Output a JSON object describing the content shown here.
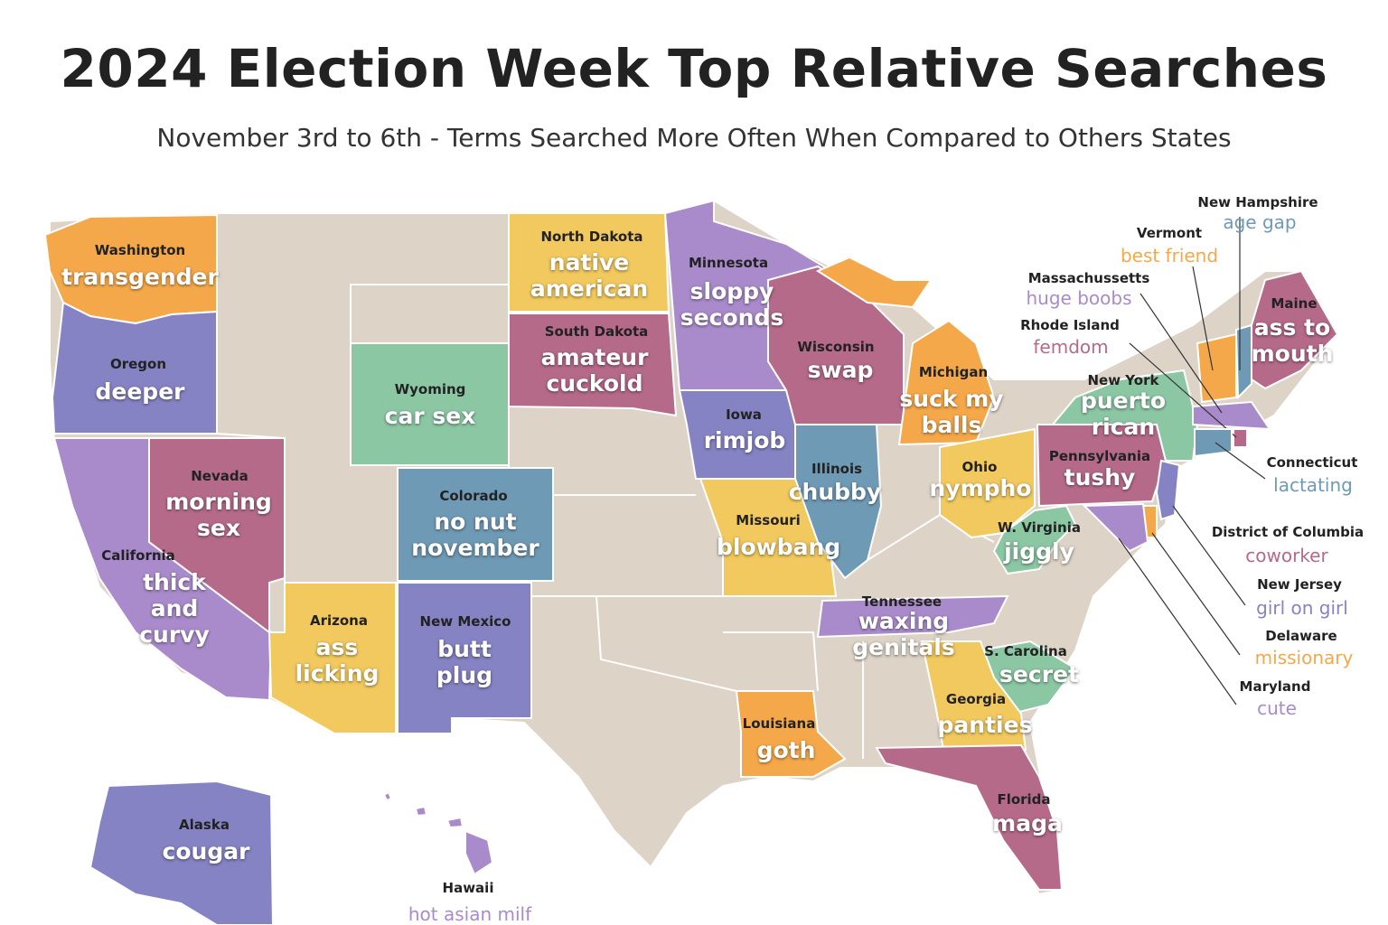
{
  "header": {
    "title": "2024 Election Week Top Relative Searches",
    "subtitle": "November 3rd to 6th - Terms Searched More Often When Compared to Others States"
  },
  "states": [
    {
      "name": "Washington",
      "term": "transgender",
      "color": "#f5a84a"
    },
    {
      "name": "Oregon",
      "term": "deeper",
      "color": "#8683c4"
    },
    {
      "name": "California",
      "term": "thick and curvy",
      "color": "#a98bcb"
    },
    {
      "name": "Nevada",
      "term": "morning sex",
      "color": "#b56a8a"
    },
    {
      "name": "Wyoming",
      "term": "car sex",
      "color": "#8cc7a4"
    },
    {
      "name": "Colorado",
      "term": "no nut november",
      "color": "#6f9ab5"
    },
    {
      "name": "Arizona",
      "term": "ass licking",
      "color": "#f2c95e"
    },
    {
      "name": "New Mexico",
      "term": "butt plug",
      "color": "#8683c4"
    },
    {
      "name": "North Dakota",
      "term": "native american",
      "color": "#f2c95e"
    },
    {
      "name": "South Dakota",
      "term": "amateur cuckold",
      "color": "#b56a8a"
    },
    {
      "name": "Minnesota",
      "term": "sloppy seconds",
      "color": "#a98bcb"
    },
    {
      "name": "Iowa",
      "term": "rimjob",
      "color": "#8683c4"
    },
    {
      "name": "Wisconsin",
      "term": "swap",
      "color": "#b56a8a"
    },
    {
      "name": "Michigan",
      "term": "suck my balls",
      "color": "#f5a84a"
    },
    {
      "name": "Illinois",
      "term": "chubby",
      "color": "#6f9ab5"
    },
    {
      "name": "Missouri",
      "term": "blowbang",
      "color": "#f2c95e"
    },
    {
      "name": "Ohio",
      "term": "nympho",
      "color": "#f2c95e"
    },
    {
      "name": "W. Virginia",
      "term": "jiggly",
      "color": "#8cc7a4"
    },
    {
      "name": "Pennsylvania",
      "term": "tushy",
      "color": "#b56a8a"
    },
    {
      "name": "New York",
      "term": "puerto rican",
      "color": "#8cc7a4"
    },
    {
      "name": "Tennessee",
      "term": "waxing genitals",
      "color": "#a98bcb"
    },
    {
      "name": "S. Carolina",
      "term": "secret",
      "color": "#8cc7a4"
    },
    {
      "name": "Georgia",
      "term": "panties",
      "color": "#f2c95e"
    },
    {
      "name": "Louisiana",
      "term": "goth",
      "color": "#f5a84a"
    },
    {
      "name": "Florida",
      "term": "maga",
      "color": "#b56a8a"
    },
    {
      "name": "Alaska",
      "term": "cougar",
      "color": "#8683c4"
    },
    {
      "name": "Hawaii",
      "term": "hot asian milf",
      "color": "#a98bcb"
    },
    {
      "name": "Maine",
      "term": "ass to mouth",
      "color": "#b56a8a"
    },
    {
      "name": "New Hampshire",
      "term": "age gap",
      "color": "#6f9ab5"
    },
    {
      "name": "Vermont",
      "term": "best friend",
      "color": "#f5a84a"
    },
    {
      "name": "Massachussetts",
      "term": "huge boobs",
      "color": "#a98bcb"
    },
    {
      "name": "Rhode Island",
      "term": "femdom",
      "color": "#b56a8a"
    },
    {
      "name": "Connecticut",
      "term": "lactating",
      "color": "#6f9ab5"
    },
    {
      "name": "District of Columbia",
      "term": "coworker",
      "color": "#b56a8a"
    },
    {
      "name": "New Jersey",
      "term": "girl on girl",
      "color": "#8683c4"
    },
    {
      "name": "Delaware",
      "term": "missionary",
      "color": "#f5a84a"
    },
    {
      "name": "Maryland",
      "term": "cute",
      "color": "#a98bcb"
    }
  ]
}
